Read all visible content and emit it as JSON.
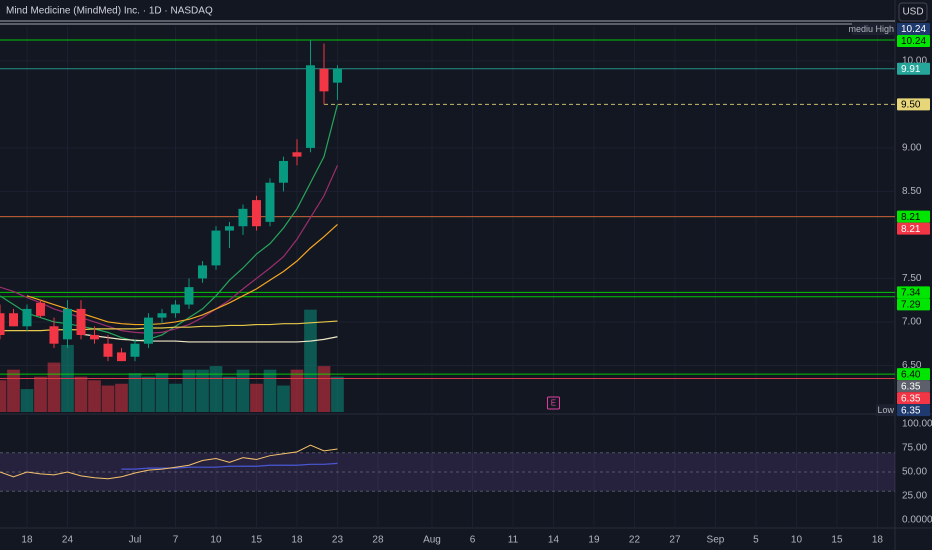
{
  "chart_data": {
    "type": "candlestick",
    "title": "Mind Medicine (MindMed) Inc. · 1D · NASDAQ",
    "currency": "USD",
    "x": [
      0,
      1,
      2,
      3,
      4,
      5,
      6,
      7,
      8,
      9,
      10,
      11,
      12,
      13,
      14,
      15,
      16,
      17,
      18,
      19,
      20,
      21,
      22,
      23,
      24,
      25
    ],
    "open": [
      7.1,
      7.1,
      6.95,
      7.22,
      6.95,
      6.8,
      7.15,
      6.85,
      6.75,
      6.65,
      6.6,
      6.75,
      7.05,
      7.1,
      7.2,
      7.5,
      7.65,
      8.05,
      8.1,
      8.4,
      8.15,
      8.6,
      8.95,
      9.0,
      9.91,
      9.75
    ],
    "high": [
      7.2,
      7.15,
      7.2,
      7.25,
      7.05,
      7.25,
      7.25,
      6.95,
      6.85,
      6.7,
      6.8,
      7.1,
      7.15,
      7.25,
      7.5,
      7.7,
      8.1,
      8.15,
      8.35,
      8.45,
      8.65,
      8.9,
      9.1,
      10.24,
      10.2,
      9.95
    ],
    "low": [
      6.8,
      6.95,
      6.9,
      7.05,
      6.7,
      6.7,
      6.8,
      6.75,
      6.55,
      6.55,
      6.55,
      6.7,
      6.98,
      7.05,
      7.15,
      7.45,
      7.6,
      7.85,
      8.0,
      8.05,
      8.1,
      8.5,
      8.8,
      8.95,
      9.5,
      9.55
    ],
    "close": [
      6.85,
      6.95,
      7.15,
      7.07,
      6.75,
      7.15,
      6.85,
      6.8,
      6.6,
      6.55,
      6.75,
      7.05,
      7.1,
      7.2,
      7.4,
      7.65,
      8.05,
      8.1,
      8.3,
      8.1,
      8.6,
      8.85,
      8.9,
      9.95,
      9.65,
      9.91
    ],
    "up_color": "#089981",
    "down_color": "#f23645",
    "volume": [
      0.9,
      1.2,
      0.65,
      1.0,
      1.4,
      1.9,
      1.0,
      0.9,
      0.75,
      0.8,
      1.1,
      1.0,
      1.1,
      0.8,
      1.2,
      1.2,
      1.3,
      1.0,
      1.2,
      0.8,
      1.2,
      0.75,
      1.2,
      2.9,
      1.3,
      1.0
    ],
    "volume_lim": [
      0,
      3.4
    ],
    "moving_averages": [
      {
        "color": "#26a65b",
        "values": [
          7.3,
          7.2,
          7.1,
          7.05,
          7.0,
          6.98,
          6.95,
          6.92,
          6.88,
          6.82,
          6.78,
          6.8,
          6.85,
          6.95,
          7.05,
          7.15,
          7.3,
          7.48,
          7.62,
          7.78,
          7.9,
          8.08,
          8.3,
          8.6,
          8.9,
          9.5
        ]
      },
      {
        "color": "#9c2e6e",
        "values": [
          7.4,
          7.35,
          7.28,
          7.22,
          7.15,
          7.1,
          7.05,
          7.0,
          6.95,
          6.9,
          6.88,
          6.87,
          6.88,
          6.92,
          6.97,
          7.05,
          7.15,
          7.25,
          7.38,
          7.5,
          7.62,
          7.75,
          7.95,
          8.2,
          8.45,
          8.8
        ]
      },
      {
        "color": "#f5a623",
        "values": [
          null,
          null,
          7.3,
          7.25,
          7.2,
          7.15,
          7.1,
          7.05,
          7.0,
          6.98,
          6.97,
          6.97,
          6.98,
          7.0,
          7.03,
          7.08,
          7.15,
          7.22,
          7.3,
          7.38,
          7.48,
          7.58,
          7.7,
          7.85,
          7.98,
          8.12
        ]
      },
      {
        "color": "#e6c84a",
        "values": [
          6.9,
          6.9,
          6.9,
          6.9,
          6.91,
          6.91,
          6.91,
          6.92,
          6.92,
          6.92,
          6.92,
          6.93,
          6.93,
          6.94,
          6.94,
          6.95,
          6.95,
          6.96,
          6.96,
          6.97,
          6.97,
          6.98,
          6.98,
          6.99,
          7.0,
          7.01
        ]
      },
      {
        "color": "#f0e9c8",
        "values": [
          null,
          null,
          null,
          null,
          null,
          null,
          6.86,
          6.84,
          6.82,
          6.8,
          6.79,
          6.78,
          6.78,
          6.78,
          6.77,
          6.77,
          6.77,
          6.77,
          6.77,
          6.77,
          6.77,
          6.77,
          6.77,
          6.78,
          6.8,
          6.83
        ]
      }
    ],
    "xlim": [
      0,
      66.3
    ],
    "ylim": [
      5.965,
      10.7
    ],
    "yticks": [
      {
        "value": 10,
        "label": "10.00"
      },
      {
        "value": 9,
        "label": "9.00"
      },
      {
        "value": 8.5,
        "label": "8.50"
      },
      {
        "value": 7.5,
        "label": "7.50"
      },
      {
        "value": 7,
        "label": "7.00"
      },
      {
        "value": 6.5,
        "label": "6.50"
      }
    ],
    "xticks": [
      {
        "value": 2,
        "label": "18"
      },
      {
        "value": 5,
        "label": "24"
      },
      {
        "value": 10,
        "label": "Jul"
      },
      {
        "value": 13,
        "label": "7"
      },
      {
        "value": 16,
        "label": "10"
      },
      {
        "value": 19,
        "label": "15"
      },
      {
        "value": 22,
        "label": "18"
      },
      {
        "value": 25,
        "label": "23"
      },
      {
        "value": 28,
        "label": "28"
      },
      {
        "value": 32,
        "label": "Aug"
      },
      {
        "value": 35,
        "label": "6"
      },
      {
        "value": 38,
        "label": "11"
      },
      {
        "value": 41,
        "label": "14"
      },
      {
        "value": 44,
        "label": "19"
      },
      {
        "value": 47,
        "label": "22"
      },
      {
        "value": 50,
        "label": "27"
      },
      {
        "value": 53,
        "label": "Sep"
      },
      {
        "value": 56,
        "label": "5"
      },
      {
        "value": 59,
        "label": "10"
      },
      {
        "value": 62,
        "label": "15"
      },
      {
        "value": 65,
        "label": "18"
      }
    ],
    "price_lines": [
      {
        "value": 10.24,
        "label": "10.24",
        "color": "#00e600",
        "text_color": "#000000"
      },
      {
        "value": 9.91,
        "label": "9.91",
        "color": "#26a69a",
        "text_color": "#ffffff"
      },
      {
        "value": 9.5,
        "label": "9.50",
        "color": "#e8d77a",
        "text_color": "#000000",
        "dashed": true
      },
      {
        "value": 8.21,
        "label": "8.21",
        "color": "#00e600",
        "text_color": "#000000"
      },
      {
        "value": 8.21,
        "label": "8.21",
        "color": "#f23645",
        "text_color": "#ffffff"
      },
      {
        "value": 7.34,
        "label": "7.34",
        "color": "#00e600",
        "text_color": "#000000"
      },
      {
        "value": 7.29,
        "label": "7.29",
        "color": "#00e600",
        "text_color": "#000000"
      },
      {
        "value": 6.4,
        "label": "6.40",
        "color": "#00e600",
        "text_color": "#000000"
      },
      {
        "value": 6.35,
        "label": "6.35",
        "color": "#5d606b",
        "text_color": "#ffffff"
      },
      {
        "value": 6.35,
        "label": "6.35",
        "color": "#f23645",
        "text_color": "#ffffff"
      }
    ],
    "high_label": {
      "text": "mediu High",
      "value": 10.24,
      "label": "10.24"
    },
    "low_label": {
      "text": "Low",
      "value": 6.35,
      "label": "6.35"
    },
    "earnings_marker": {
      "x": 41,
      "label": "E"
    },
    "rsi": {
      "values": [
        50,
        45,
        50,
        48,
        47,
        50,
        46,
        44,
        43,
        45,
        49,
        52,
        53,
        55,
        57,
        62,
        64,
        60,
        65,
        63,
        67,
        69,
        71,
        78,
        72,
        74
      ],
      "color": "#f5c26b",
      "ma_values": [
        null,
        null,
        null,
        null,
        null,
        null,
        null,
        null,
        null,
        53,
        53,
        54,
        54,
        54,
        55,
        55,
        55,
        56,
        56,
        56,
        57,
        57,
        57,
        58,
        58,
        59
      ],
      "ma_color": "#4a57d6",
      "band": [
        30,
        70
      ],
      "ylim": [
        0,
        100
      ],
      "yticks": [
        {
          "value": 100,
          "label": "100.00"
        },
        {
          "value": 75,
          "label": "75.00"
        },
        {
          "value": 50,
          "label": "50.00"
        },
        {
          "value": 25,
          "label": "25.00"
        },
        {
          "value": 0,
          "label": "0.0000"
        }
      ]
    }
  }
}
